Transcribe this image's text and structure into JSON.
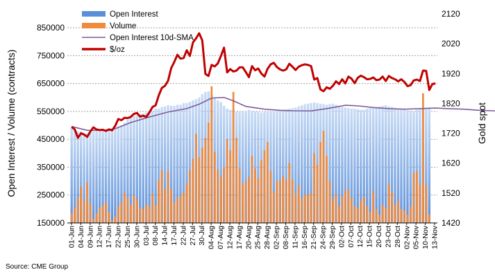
{
  "chart_data": {
    "type": "bar",
    "title": "",
    "ylabel": "Open Interest / Volume (contracts)",
    "y2label": "Gold spot",
    "ylim": [
      150000,
      900000
    ],
    "y2lim": [
      1420,
      2120
    ],
    "yticks": [
      "150000",
      "250000",
      "350000",
      "450000",
      "550000",
      "650000",
      "750000",
      "850000"
    ],
    "y2ticks": [
      "1420",
      "1520",
      "1620",
      "1720",
      "1820",
      "1920",
      "2020",
      "2120"
    ],
    "xticks": [
      "01-Jun",
      "04-Jun",
      "09-Jun",
      "12-Jun",
      "17-Jun",
      "22-Jun",
      "25-Jun",
      "30-Jun",
      "03-Jul",
      "08-Jul",
      "14-Jul",
      "17-Jul",
      "22-Jul",
      "27-Jul",
      "30-Jul",
      "04-Aug",
      "07-Aug",
      "12-Aug",
      "17-Aug",
      "20-Aug",
      "25-Aug",
      "28-Aug",
      "02-Sep",
      "08-Sep",
      "11-Sep",
      "16-Sep",
      "21-Sep",
      "24-Sep",
      "29-Sep",
      "02-Oct",
      "07-Oct",
      "12-Oct",
      "15-Oct",
      "20-Oct",
      "23-Oct",
      "28-Oct",
      "02-Nov",
      "05-Nov",
      "10-Nov",
      "13-Nov"
    ],
    "grid": true,
    "legend_position": "top-left",
    "colors": {
      "open_interest": "#5b8fd9",
      "volume": "#f08a3c",
      "sma": "#7b5c9b",
      "gold": "#c00000"
    },
    "series": [
      {
        "name": "Open Interest",
        "type": "bar",
        "axis": "left",
        "values": [
          492000,
          483000,
          478000,
          478000,
          470000,
          472000,
          474000,
          478000,
          480000,
          484000,
          482000,
          484000,
          490000,
          488000,
          492000,
          496000,
          500000,
          510000,
          520000,
          530000,
          534000,
          536000,
          540000,
          542000,
          546000,
          552000,
          552000,
          560000,
          560000,
          566000,
          568000,
          572000,
          570000,
          570000,
          574000,
          574000,
          580000,
          580000,
          584000,
          590000,
          594000,
          600000,
          612000,
          620000,
          622000,
          612000,
          600000,
          590000,
          584000,
          570000,
          560000,
          556000,
          552000,
          548000,
          550000,
          550000,
          552000,
          556000,
          552000,
          550000,
          548000,
          546000,
          548000,
          550000,
          552000,
          552000,
          554000,
          556000,
          556000,
          558000,
          560000,
          562000,
          564000,
          568000,
          572000,
          576000,
          578000,
          580000,
          582000,
          580000,
          578000,
          576000,
          574000,
          576000,
          578000,
          574000,
          570000,
          566000,
          564000,
          562000,
          560000,
          560000,
          558000,
          556000,
          556000,
          560000,
          562000,
          564000,
          566000,
          568000,
          570000,
          572000,
          568000,
          566000,
          562000,
          560000,
          558000,
          556000,
          554000,
          552000,
          550000,
          556000,
          560000,
          562000,
          564000,
          565000
        ]
      },
      {
        "name": "Volume",
        "type": "bar",
        "axis": "left",
        "values": [
          185000,
          205000,
          240000,
          280000,
          230000,
          295000,
          220000,
          165000,
          185000,
          205000,
          215000,
          225000,
          190000,
          160000,
          175000,
          210000,
          225000,
          260000,
          240000,
          215000,
          250000,
          235000,
          205000,
          200000,
          215000,
          210000,
          255000,
          215000,
          305000,
          340000,
          270000,
          335000,
          270000,
          225000,
          240000,
          250000,
          260000,
          290000,
          340000,
          380000,
          470000,
          385000,
          420000,
          455000,
          510000,
          640000,
          405000,
          340000,
          315000,
          350000,
          450000,
          410000,
          620000,
          455000,
          345000,
          290000,
          300000,
          315000,
          390000,
          345000,
          310000,
          375000,
          410000,
          440000,
          335000,
          260000,
          300000,
          300000,
          320000,
          305000,
          365000,
          305000,
          255000,
          285000,
          240000,
          250000,
          255000,
          255000,
          400000,
          360000,
          440000,
          480000,
          390000,
          300000,
          235000,
          255000,
          210000,
          245000,
          265000,
          270000,
          240000,
          210000,
          205000,
          230000,
          245000,
          210000,
          190000,
          265000,
          200000,
          180000,
          215000,
          205000,
          290000,
          260000,
          215000,
          230000,
          200000,
          195000,
          180000,
          210000,
          330000,
          335000,
          290000,
          615000,
          285000,
          180000
        ]
      },
      {
        "name": "Open Interest 10d-SMA",
        "type": "line",
        "axis": "left",
        "points": [
          [
            0,
            496000
          ],
          [
            5,
            482000
          ],
          [
            10,
            482000
          ],
          [
            14,
            488000
          ],
          [
            19,
            510000
          ],
          [
            25,
            530000
          ],
          [
            31,
            548000
          ],
          [
            37,
            560000
          ],
          [
            41,
            576000
          ],
          [
            45,
            598000
          ],
          [
            49,
            600000
          ],
          [
            52,
            588000
          ],
          [
            56,
            568000
          ],
          [
            62,
            558000
          ],
          [
            67,
            554000
          ],
          [
            72,
            552000
          ],
          [
            77,
            552000
          ],
          [
            82,
            560000
          ],
          [
            88,
            572000
          ],
          [
            92,
            570000
          ],
          [
            97,
            564000
          ],
          [
            102,
            560000
          ],
          [
            107,
            558000
          ],
          [
            112,
            560000
          ],
          [
            117,
            562000
          ],
          [
            121,
            560000
          ],
          [
            126,
            558000
          ],
          [
            131,
            554000
          ],
          [
            136,
            552000
          ],
          [
            140,
            556000
          ],
          [
            143,
            554000
          ],
          [
            145,
            554000
          ]
        ]
      },
      {
        "name": "$/oz",
        "type": "line",
        "axis": "right",
        "points": [
          [
            0,
            1742
          ],
          [
            1,
            1733
          ],
          [
            2,
            1705
          ],
          [
            3,
            1720
          ],
          [
            4,
            1716
          ],
          [
            5,
            1708
          ],
          [
            6,
            1726
          ],
          [
            7,
            1740
          ],
          [
            8,
            1733
          ],
          [
            9,
            1731
          ],
          [
            10,
            1732
          ],
          [
            11,
            1728
          ],
          [
            12,
            1733
          ],
          [
            13,
            1730
          ],
          [
            14,
            1745
          ],
          [
            15,
            1768
          ],
          [
            16,
            1764
          ],
          [
            17,
            1772
          ],
          [
            18,
            1771
          ],
          [
            19,
            1775
          ],
          [
            20,
            1785
          ],
          [
            21,
            1788
          ],
          [
            22,
            1776
          ],
          [
            23,
            1779
          ],
          [
            24,
            1775
          ],
          [
            25,
            1790
          ],
          [
            26,
            1808
          ],
          [
            27,
            1814
          ],
          [
            28,
            1847
          ],
          [
            29,
            1872
          ],
          [
            30,
            1879
          ],
          [
            31,
            1896
          ],
          [
            32,
            1938
          ],
          [
            33,
            1959
          ],
          [
            34,
            1983
          ],
          [
            35,
            1970
          ],
          [
            36,
            1972
          ],
          [
            37,
            1998
          ],
          [
            38,
            1979
          ],
          [
            39,
            2024
          ],
          [
            40,
            2038
          ],
          [
            41,
            2055
          ],
          [
            42,
            2031
          ],
          [
            43,
            1919
          ],
          [
            44,
            1912
          ],
          [
            45,
            1949
          ],
          [
            46,
            1944
          ],
          [
            47,
            1954
          ],
          [
            48,
            1979
          ],
          [
            49,
            2007
          ],
          [
            50,
            1924
          ],
          [
            51,
            1935
          ],
          [
            52,
            1927
          ],
          [
            53,
            1930
          ],
          [
            54,
            1941
          ],
          [
            55,
            1941
          ],
          [
            56,
            1925
          ],
          [
            57,
            1908
          ],
          [
            58,
            1945
          ],
          [
            59,
            1931
          ],
          [
            60,
            1937
          ],
          [
            61,
            1920
          ],
          [
            62,
            1910
          ],
          [
            63,
            1936
          ],
          [
            64,
            1951
          ],
          [
            65,
            1956
          ],
          [
            66,
            1942
          ],
          [
            67,
            1934
          ],
          [
            68,
            1930
          ],
          [
            69,
            1934
          ],
          [
            70,
            1953
          ],
          [
            71,
            1943
          ],
          [
            72,
            1932
          ],
          [
            73,
            1943
          ],
          [
            74,
            1948
          ],
          [
            75,
            1951
          ],
          [
            76,
            1949
          ],
          [
            77,
            1945
          ],
          [
            78,
            1900
          ],
          [
            79,
            1905
          ],
          [
            80,
            1867
          ],
          [
            81,
            1861
          ],
          [
            82,
            1874
          ],
          [
            83,
            1869
          ],
          [
            84,
            1879
          ],
          [
            85,
            1894
          ],
          [
            86,
            1885
          ],
          [
            87,
            1901
          ],
          [
            88,
            1887
          ],
          [
            89,
            1910
          ],
          [
            90,
            1903
          ],
          [
            91,
            1888
          ],
          [
            92,
            1906
          ],
          [
            93,
            1913
          ],
          [
            94,
            1908
          ],
          [
            95,
            1901
          ],
          [
            96,
            1902
          ],
          [
            97,
            1907
          ],
          [
            98,
            1898
          ],
          [
            99,
            1900
          ],
          [
            100,
            1910
          ],
          [
            101,
            1895
          ],
          [
            102,
            1912
          ],
          [
            103,
            1905
          ],
          [
            104,
            1901
          ],
          [
            105,
            1894
          ],
          [
            106,
            1901
          ],
          [
            107,
            1892
          ],
          [
            108,
            1878
          ],
          [
            109,
            1881
          ],
          [
            110,
            1897
          ],
          [
            111,
            1900
          ],
          [
            112,
            1895
          ],
          [
            113,
            1930
          ],
          [
            114,
            1929
          ],
          [
            115,
            1865
          ],
          [
            116,
            1885
          ],
          [
            117,
            1887
          ]
        ]
      }
    ],
    "legend": [
      {
        "label": "Open Interest",
        "swatch": "bar",
        "color": "#5b8fd9"
      },
      {
        "label": "Volume",
        "swatch": "bar",
        "color": "#f08a3c"
      },
      {
        "label": "Open Interest 10d-SMA",
        "swatch": "line",
        "color": "#7b5c9b"
      },
      {
        "label": "$/oz",
        "swatch": "thickline",
        "color": "#c00000"
      }
    ]
  },
  "source": "Source: CME Group"
}
